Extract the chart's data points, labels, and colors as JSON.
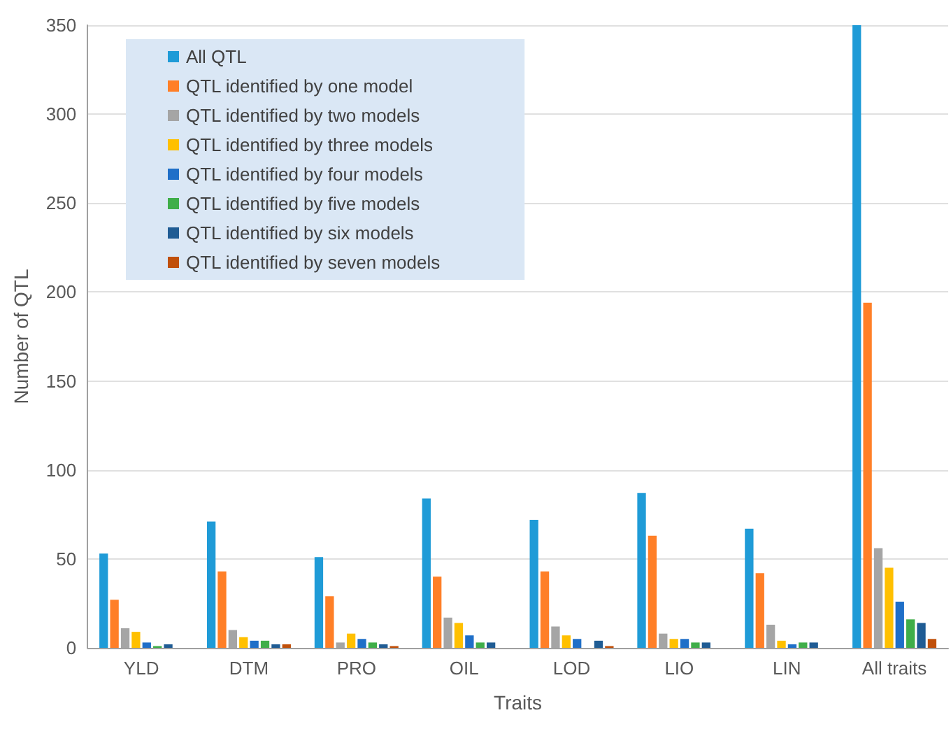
{
  "chart_data": {
    "type": "bar",
    "xlabel": "Traits",
    "ylabel": "Number of QTL",
    "categories": [
      "YLD",
      "DTM",
      "PRO",
      "OIL",
      "LOD",
      "LIO",
      "LIN",
      "All traits"
    ],
    "series": [
      {
        "name": "All QTL",
        "color": "#1f9bd7",
        "values": [
          53,
          71,
          51,
          84,
          72,
          87,
          67,
          350
        ]
      },
      {
        "name": "QTL identified by one model",
        "color": "#ff7f27",
        "values": [
          27,
          43,
          29,
          40,
          43,
          63,
          42,
          194
        ]
      },
      {
        "name": "QTL identified by two models",
        "color": "#a5a5a5",
        "values": [
          11,
          10,
          3,
          17,
          12,
          8,
          13,
          56
        ]
      },
      {
        "name": "QTL identified by three models",
        "color": "#ffc000",
        "values": [
          9,
          6,
          8,
          14,
          7,
          5,
          4,
          45
        ]
      },
      {
        "name": "QTL identified by four models",
        "color": "#1f6fc8",
        "values": [
          3,
          4,
          5,
          7,
          5,
          5,
          2,
          26
        ]
      },
      {
        "name": "QTL identified by five models",
        "color": "#3fae49",
        "values": [
          1,
          4,
          3,
          3,
          0,
          3,
          3,
          16
        ]
      },
      {
        "name": "QTL identified by six models",
        "color": "#1f5c94",
        "values": [
          2,
          2,
          2,
          3,
          4,
          3,
          3,
          14
        ]
      },
      {
        "name": "QTL identified by seven models",
        "color": "#c0500a",
        "values": [
          0,
          2,
          1,
          0,
          1,
          0,
          0,
          5
        ]
      }
    ],
    "ylim": [
      0,
      350
    ],
    "yticks": [
      0,
      50,
      100,
      150,
      200,
      250,
      300,
      350
    ],
    "grid": "y",
    "legend": "top left"
  }
}
